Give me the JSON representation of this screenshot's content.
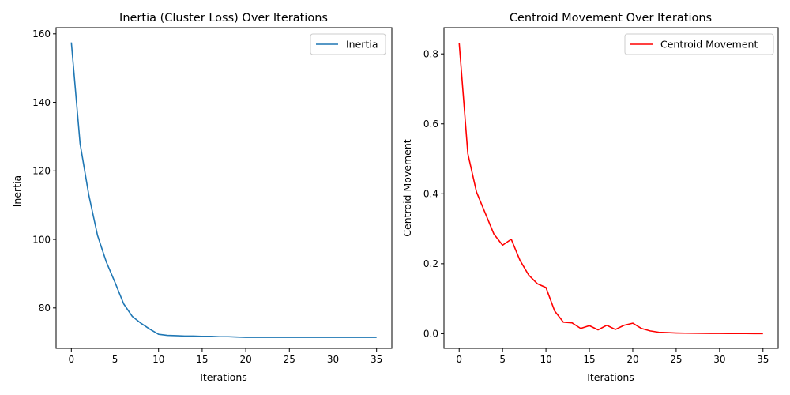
{
  "chart_data": [
    {
      "type": "line",
      "title": "Inertia (Cluster Loss) Over Iterations",
      "xlabel": "Iterations",
      "ylabel": "Inertia",
      "xlim": [
        -1.75,
        36.75
      ],
      "ylim": [
        68.2,
        161.8
      ],
      "xticks": [
        0,
        5,
        10,
        15,
        20,
        25,
        30,
        35
      ],
      "yticks": [
        80,
        100,
        120,
        140,
        160
      ],
      "grid": false,
      "legend": "top-right",
      "series": [
        {
          "name": "Inertia",
          "color": "#1f77b4",
          "x": [
            0,
            1,
            2,
            3,
            4,
            5,
            6,
            7,
            8,
            9,
            10,
            11,
            12,
            13,
            14,
            15,
            16,
            17,
            18,
            19,
            20,
            21,
            22,
            23,
            24,
            25,
            26,
            27,
            28,
            29,
            30,
            31,
            32,
            33,
            34,
            35
          ],
          "y": [
            157.5,
            128.0,
            113.0,
            101.2,
            93.5,
            87.5,
            81.2,
            77.5,
            75.5,
            73.8,
            72.3,
            72.0,
            71.9,
            71.8,
            71.8,
            71.7,
            71.7,
            71.6,
            71.6,
            71.5,
            71.4,
            71.4,
            71.4,
            71.4,
            71.4,
            71.4,
            71.4,
            71.4,
            71.4,
            71.4,
            71.4,
            71.4,
            71.4,
            71.4,
            71.4,
            71.4
          ]
        }
      ]
    },
    {
      "type": "line",
      "title": "Centroid Movement Over Iterations",
      "xlabel": "Iterations",
      "ylabel": "Centroid Movement",
      "xlim": [
        -1.75,
        36.75
      ],
      "ylim": [
        -0.042,
        0.875
      ],
      "xticks": [
        0,
        5,
        10,
        15,
        20,
        25,
        30,
        35
      ],
      "yticks": [
        0.0,
        0.2,
        0.4,
        0.6,
        0.8
      ],
      "ytick_labels": [
        "0.0",
        "0.2",
        "0.4",
        "0.6",
        "0.8"
      ],
      "grid": false,
      "legend": "top-right",
      "series": [
        {
          "name": "Centroid Movement",
          "color": "#ff0000",
          "x": [
            0,
            1,
            2,
            3,
            4,
            5,
            6,
            7,
            8,
            9,
            10,
            11,
            12,
            13,
            14,
            15,
            16,
            17,
            18,
            19,
            20,
            21,
            22,
            23,
            24,
            25,
            26,
            27,
            28,
            29,
            30,
            31,
            32,
            33,
            34,
            35
          ],
          "y": [
            0.832,
            0.515,
            0.405,
            0.345,
            0.285,
            0.253,
            0.27,
            0.21,
            0.168,
            0.143,
            0.132,
            0.065,
            0.033,
            0.031,
            0.015,
            0.023,
            0.011,
            0.024,
            0.012,
            0.024,
            0.03,
            0.015,
            0.008,
            0.004,
            0.003,
            0.002,
            0.0015,
            0.0012,
            0.001,
            0.0008,
            0.0007,
            0.0006,
            0.0005,
            0.0004,
            0.0003,
            0.0003
          ]
        }
      ]
    }
  ]
}
